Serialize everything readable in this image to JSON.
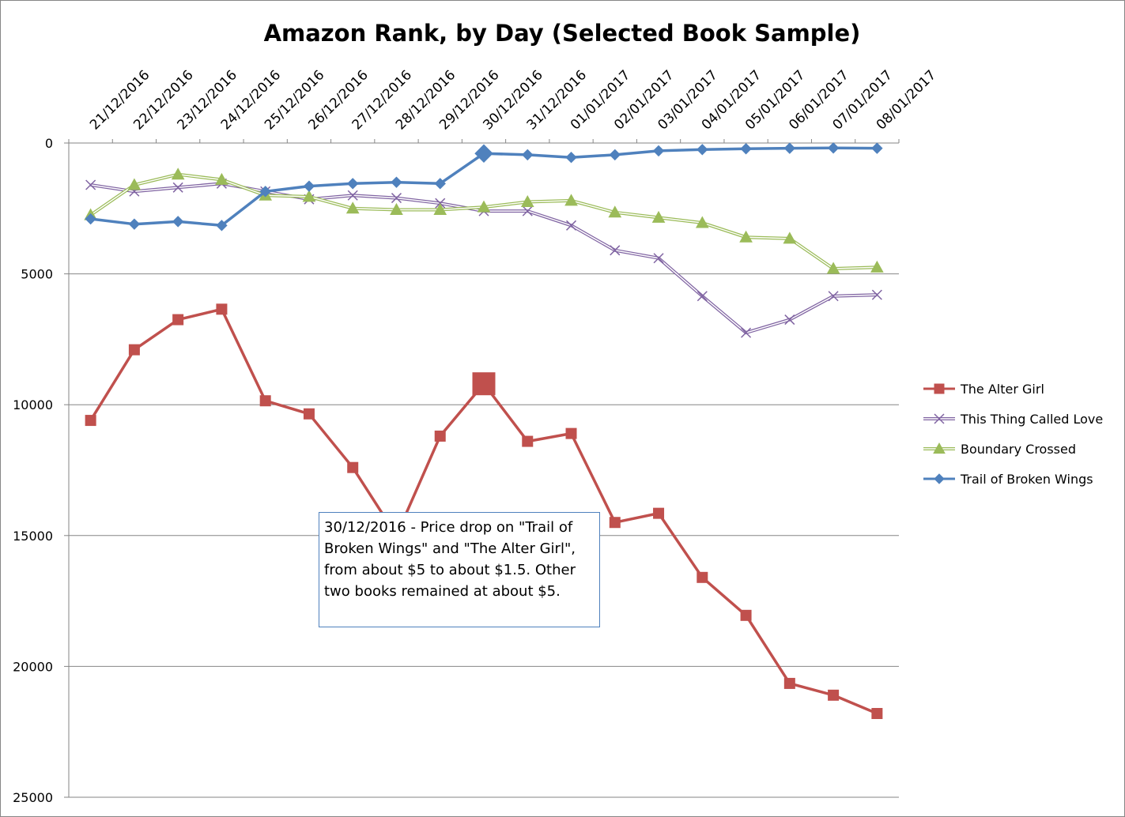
{
  "chart_data": {
    "type": "line",
    "title": "Amazon Rank, by Day (Selected Book Sample)",
    "xlabel": "",
    "ylabel": "",
    "ylim": [
      0,
      25000
    ],
    "y_reversed": true,
    "y_ticks": [
      0,
      5000,
      10000,
      15000,
      20000,
      25000
    ],
    "x_axis_position": "top",
    "grid": "horizontal",
    "legend_position": "right",
    "categories": [
      "21/12/2016",
      "22/12/2016",
      "23/12/2016",
      "24/12/2016",
      "25/12/2016",
      "26/12/2016",
      "27/12/2016",
      "28/12/2016",
      "29/12/2016",
      "30/12/2016",
      "31/12/2016",
      "01/01/2017",
      "02/01/2017",
      "03/01/2017",
      "04/01/2017",
      "05/01/2017",
      "06/01/2017",
      "07/01/2017",
      "08/01/2017"
    ],
    "series": [
      {
        "name": "The Alter Girl",
        "color": "#c0504d",
        "marker": "square",
        "highlight_index": 9,
        "values": [
          10600,
          7900,
          6750,
          6350,
          9850,
          10350,
          12400,
          15000,
          11200,
          9200,
          11400,
          11100,
          14500,
          14150,
          16600,
          18050,
          20650,
          21100,
          21800
        ]
      },
      {
        "name": "This Thing Called Love",
        "color": "#8064a2",
        "marker": "x",
        "values": [
          1600,
          1850,
          1700,
          1550,
          1850,
          2150,
          2000,
          2100,
          2300,
          2600,
          2600,
          3150,
          4100,
          4400,
          5850,
          7250,
          6750,
          5850,
          5800
        ]
      },
      {
        "name": "Boundary Crossed",
        "color": "#9bbb59",
        "marker": "triangle",
        "values": [
          2750,
          1600,
          1200,
          1400,
          2000,
          2050,
          2500,
          2550,
          2550,
          2450,
          2250,
          2200,
          2650,
          2850,
          3050,
          3600,
          3650,
          4800,
          4750
        ]
      },
      {
        "name": "Trail of Broken Wings",
        "color": "#4f81bd",
        "marker": "diamond",
        "highlight_index": 9,
        "values": [
          2900,
          3100,
          3000,
          3150,
          1850,
          1650,
          1550,
          1500,
          1550,
          400,
          450,
          550,
          450,
          300,
          250,
          220,
          200,
          190,
          200
        ]
      }
    ],
    "annotation": "30/12/2016 - Price drop on \"Trail of Broken Wings\" and \"The Alter Girl\", from about $5 to about $1.5. Other two books remained at about $5."
  }
}
